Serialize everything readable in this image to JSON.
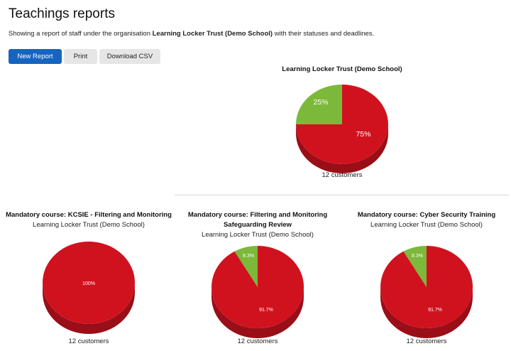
{
  "page": {
    "title": "Teachings reports",
    "subtitle_prefix": "Showing a report of staff under the organisation ",
    "organisation": "Learning Locker Trust (Demo School)",
    "subtitle_suffix": " with their statuses and deadlines."
  },
  "toolbar": {
    "new_report": "New Report",
    "print": "Print",
    "download_csv": "Download CSV"
  },
  "colors": {
    "primary": "#1565c0",
    "red": "#d0121f",
    "red_side": "#9a0e18",
    "green": "#7cb83a",
    "green_side": "#5a8d28"
  },
  "charts": {
    "main": {
      "title": "Learning Locker Trust (Demo School)",
      "count": "12 customers"
    },
    "kcsie": {
      "title": "Mandatory course: KCSIE - Filtering and Monitoring",
      "org": "Learning Locker Trust (Demo School)",
      "count": "12 customers"
    },
    "filtering": {
      "title_line1": "Mandatory course: Filtering and Monitoring",
      "title_line2": "Safeguarding Review",
      "org": "Learning Locker Trust (Demo School)",
      "count": "12 customers"
    },
    "cyber": {
      "title": "Mandatory course: Cyber Security Training",
      "org": "Learning Locker Trust (Demo School)",
      "count": "12 customers"
    }
  },
  "chart_data": [
    {
      "type": "pie",
      "title": "Learning Locker Trust (Demo School)",
      "labels": [
        "75%",
        "25%"
      ],
      "values": [
        75,
        25
      ],
      "colors": [
        "#d0121f",
        "#7cb83a"
      ]
    },
    {
      "type": "pie",
      "title": "Mandatory course: KCSIE - Filtering and Monitoring",
      "labels": [
        "100%"
      ],
      "values": [
        100
      ],
      "colors": [
        "#d0121f"
      ]
    },
    {
      "type": "pie",
      "title": "Mandatory course: Filtering and Monitoring Safeguarding Review",
      "labels": [
        "91.7%",
        "8.3%"
      ],
      "values": [
        91.7,
        8.3
      ],
      "colors": [
        "#d0121f",
        "#7cb83a"
      ]
    },
    {
      "type": "pie",
      "title": "Mandatory course: Cyber Security Training",
      "labels": [
        "91.7%",
        "8.3%"
      ],
      "values": [
        91.7,
        8.3
      ],
      "colors": [
        "#d0121f",
        "#7cb83a"
      ]
    }
  ]
}
